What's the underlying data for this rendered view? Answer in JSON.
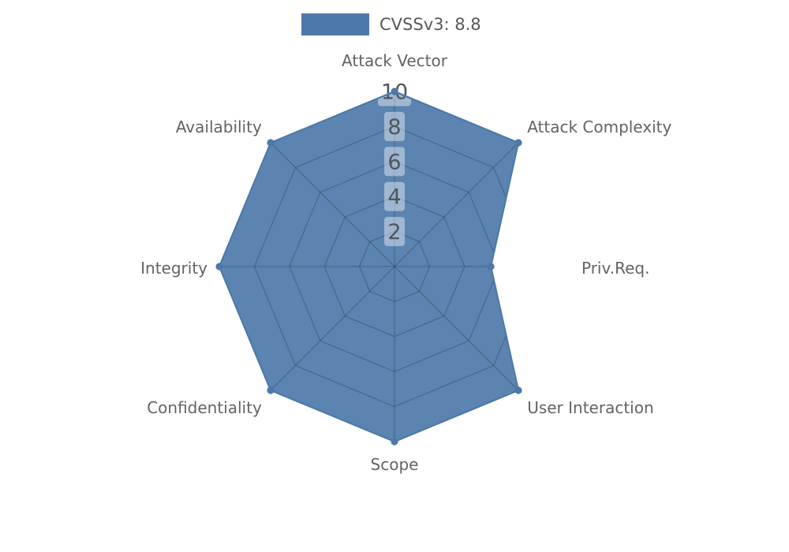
{
  "page": {
    "background": "#ffffff"
  },
  "legend": {
    "label": "CVSSv3: 8.8",
    "swatch_color": "#4d79a9",
    "text_color": "#595959"
  },
  "chart_data": {
    "type": "radar",
    "title": "CVSSv3: 8.8",
    "categories": [
      "Attack Vector",
      "Attack Complexity",
      "Priv.Req.",
      "User Interaction",
      "Scope",
      "Confidentiality",
      "Integrity",
      "Availability"
    ],
    "series": [
      {
        "name": "CVSSv3: 8.8",
        "values": [
          10,
          10,
          5.5,
          10,
          10,
          10,
          10,
          10
        ]
      }
    ],
    "rmax": 10,
    "ticks": [
      2,
      4,
      6,
      8,
      10
    ],
    "grid": true,
    "grid_shape": "polygon",
    "legend_position": "top-center",
    "colors": {
      "accent": "#4d79a9",
      "fill_opacity": 0.92,
      "grid_line": "rgba(25,30,40,0.30)",
      "tick_text": "#4e565e",
      "tick_box_fill": "rgba(255,255,255,0.42)",
      "axis_label": "#636363"
    }
  }
}
